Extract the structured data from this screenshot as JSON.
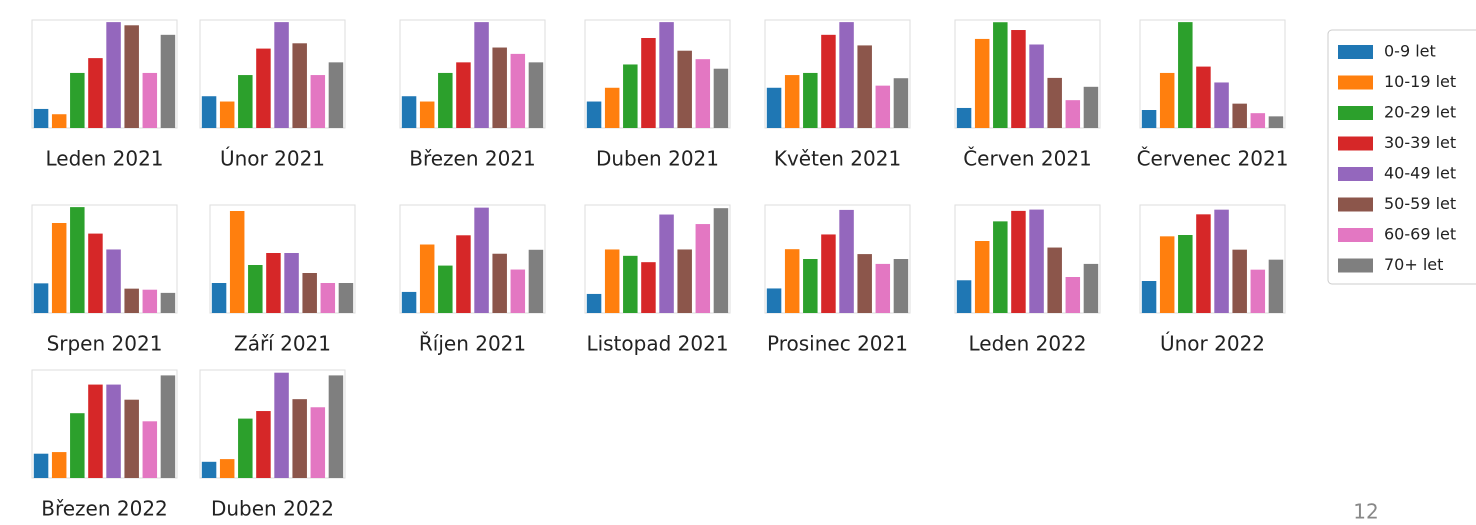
{
  "legend": {
    "items": [
      {
        "name": "0-9 let",
        "color": "#1f77b4"
      },
      {
        "name": "10-19 let",
        "color": "#ff7f0e"
      },
      {
        "name": "20-29 let",
        "color": "#2ca02c"
      },
      {
        "name": "30-39 let",
        "color": "#d62728"
      },
      {
        "name": "40-49 let",
        "color": "#9467bd"
      },
      {
        "name": "50-59 let",
        "color": "#8c564b"
      },
      {
        "name": "60-69 let",
        "color": "#e377c2"
      },
      {
        "name": "70+ let",
        "color": "#7f7f7f"
      }
    ]
  },
  "page_number": "12",
  "chart_data": [
    {
      "type": "bar",
      "title": "Leden 2021",
      "values": [
        18,
        13,
        52,
        66,
        100,
        97,
        52,
        88
      ],
      "ylim": [
        0,
        102
      ]
    },
    {
      "type": "bar",
      "title": "Únor 2021",
      "values": [
        30,
        25,
        50,
        75,
        100,
        80,
        50,
        62
      ],
      "ylim": [
        0,
        102
      ]
    },
    {
      "type": "bar",
      "title": "Březen 2021",
      "values": [
        30,
        25,
        52,
        62,
        100,
        76,
        70,
        62
      ],
      "ylim": [
        0,
        102
      ]
    },
    {
      "type": "bar",
      "title": "Duben 2021",
      "values": [
        25,
        38,
        60,
        85,
        100,
        73,
        65,
        56
      ],
      "ylim": [
        0,
        102
      ]
    },
    {
      "type": "bar",
      "title": "Květen 2021",
      "values": [
        38,
        50,
        52,
        88,
        100,
        78,
        40,
        47
      ],
      "ylim": [
        0,
        102
      ]
    },
    {
      "type": "bar",
      "title": "Červen 2021",
      "values": [
        18,
        80,
        95,
        88,
        75,
        45,
        25,
        37
      ],
      "ylim": [
        0,
        97
      ]
    },
    {
      "type": "bar",
      "title": "Červenec 2021",
      "values": [
        17,
        52,
        100,
        58,
        43,
        23,
        14,
        11
      ],
      "ylim": [
        0,
        102
      ]
    },
    {
      "type": "bar",
      "title": "Srpen 2021",
      "values": [
        28,
        85,
        100,
        75,
        60,
        23,
        22,
        19
      ],
      "ylim": [
        0,
        102
      ]
    },
    {
      "type": "bar",
      "title": "Září 2021",
      "values": [
        7.5,
        25.5,
        12,
        15,
        15,
        10,
        7.5,
        7.5
      ],
      "ylim": [
        0,
        27
      ]
    },
    {
      "type": "bar",
      "title": "Říjen 2021",
      "values": [
        80,
        260,
        180,
        295,
        400,
        225,
        165,
        240
      ],
      "ylim": [
        0,
        410
      ]
    },
    {
      "type": "bar",
      "title": "Listopad 2021",
      "values": [
        6,
        20,
        18,
        16,
        31,
        20,
        28,
        33
      ],
      "ylim": [
        0,
        34
      ]
    },
    {
      "type": "bar",
      "title": "Prosinec 2021",
      "values": [
        5,
        13,
        11,
        16,
        21,
        12,
        10,
        11
      ],
      "ylim": [
        0,
        22
      ]
    },
    {
      "type": "bar",
      "title": "Leden 2022",
      "values": [
        5,
        11,
        14,
        15.6,
        15.8,
        10,
        5.5,
        7.5
      ],
      "ylim": [
        0,
        16.5
      ]
    },
    {
      "type": "bar",
      "title": "Únor 2022",
      "values": [
        4.8,
        11.5,
        11.7,
        14.8,
        15.5,
        9.5,
        6.5,
        8
      ],
      "ylim": [
        0,
        16.2
      ]
    },
    {
      "type": "bar",
      "title": "Březen 2022",
      "values": [
        4.5,
        4.8,
        12,
        17.3,
        17.3,
        14.5,
        10.5,
        19
      ],
      "ylim": [
        0,
        20
      ]
    },
    {
      "type": "bar",
      "title": "Duben 2022",
      "values": [
        3,
        3.5,
        11,
        12.4,
        19.5,
        14.6,
        13.1,
        19
      ],
      "ylim": [
        0,
        20
      ]
    }
  ]
}
